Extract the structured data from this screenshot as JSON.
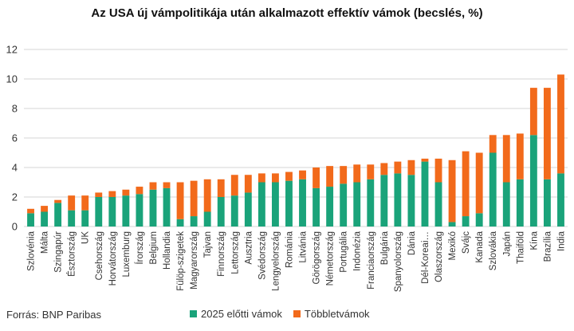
{
  "chart_data": {
    "type": "bar",
    "stacked": true,
    "title": "Az USA új vámpolitikája után alkalmazott effektív vámok (becslés, %)",
    "xlabel": "",
    "ylabel": "",
    "ylim": [
      0,
      12
    ],
    "yticks": [
      0,
      2,
      4,
      6,
      8,
      10,
      12
    ],
    "grid": true,
    "legend_position": "bottom",
    "categories": [
      "Szlovénia",
      "Málta",
      "Szingapúr",
      "Észtország",
      "UK",
      "Csehország",
      "Horvátország",
      "Luxemburg",
      "Írország",
      "Belgium",
      "Hollandia",
      "Fülöp-szigetek",
      "Magyarország",
      "Tajvan",
      "Finnország",
      "Lettország",
      "Ausztria",
      "Svédország",
      "Lengyelország",
      "Románia",
      "Litvánia",
      "Görögország",
      "Németország",
      "Portugália",
      "Indonézia",
      "Franciaország",
      "Bulgária",
      "Spanyolország",
      "Dánia",
      "Dél-Korea",
      "Olaszország",
      "Mexikó",
      "Svájc",
      "Kanada",
      "Szlovákia",
      "Japán",
      "Thaiföld",
      "Kína",
      "Brazília",
      "India"
    ],
    "category_labels": [
      "Szlovénia",
      "Málta",
      "Szingapúr",
      "Észtország",
      "UK",
      "Csehország",
      "Horvátország",
      "Luxemburg",
      "Írország",
      "Belgium",
      "Hollandia",
      "Fülöp-szigetek",
      "Magyarország",
      "Tajvan",
      "Finnország",
      "Lettország",
      "Ausztria",
      "Svédország",
      "Lengyelország",
      "Románia",
      "Litvánia",
      "Görögország",
      "Németország",
      "Portugália",
      "Indonézia",
      "Franciaország",
      "Bulgária",
      "Spanyolország",
      "Dánia",
      "Dél-Koreai…",
      "Olaszország",
      "Mexikó",
      "Svájc",
      "Kanada",
      "Szlovákia",
      "Japán",
      "Thaiföld",
      "Kína",
      "Brazília",
      "India"
    ],
    "series": [
      {
        "name": "2025 előtti vámok",
        "color": "#1aa37a",
        "values": [
          0.9,
          1.0,
          1.6,
          1.1,
          1.1,
          2.0,
          2.0,
          2.1,
          2.2,
          2.5,
          2.6,
          0.5,
          0.7,
          1.0,
          2.0,
          2.1,
          2.3,
          3.0,
          3.0,
          3.1,
          3.2,
          2.6,
          2.7,
          2.9,
          3.0,
          3.2,
          3.5,
          3.6,
          3.5,
          4.4,
          3.0,
          0.3,
          0.7,
          0.9,
          5.0,
          3.0,
          3.2,
          6.2,
          3.2,
          3.6
        ]
      },
      {
        "name": "Többletvámok",
        "color": "#f26a1b",
        "values": [
          0.3,
          0.4,
          0.2,
          1.0,
          1.0,
          0.3,
          0.4,
          0.4,
          0.5,
          0.5,
          0.4,
          2.5,
          2.4,
          2.2,
          1.2,
          1.4,
          1.2,
          0.6,
          0.6,
          0.6,
          0.6,
          1.4,
          1.4,
          1.2,
          1.2,
          1.0,
          0.8,
          0.8,
          1.0,
          0.2,
          1.6,
          4.2,
          4.4,
          4.1,
          1.2,
          3.2,
          3.1,
          3.2,
          6.2,
          6.7
        ]
      }
    ]
  },
  "footer": {
    "source": "Forrás: BNP Paribas"
  },
  "legend": {
    "items": [
      "2025 előtti vámok",
      "Többletvámok"
    ]
  }
}
